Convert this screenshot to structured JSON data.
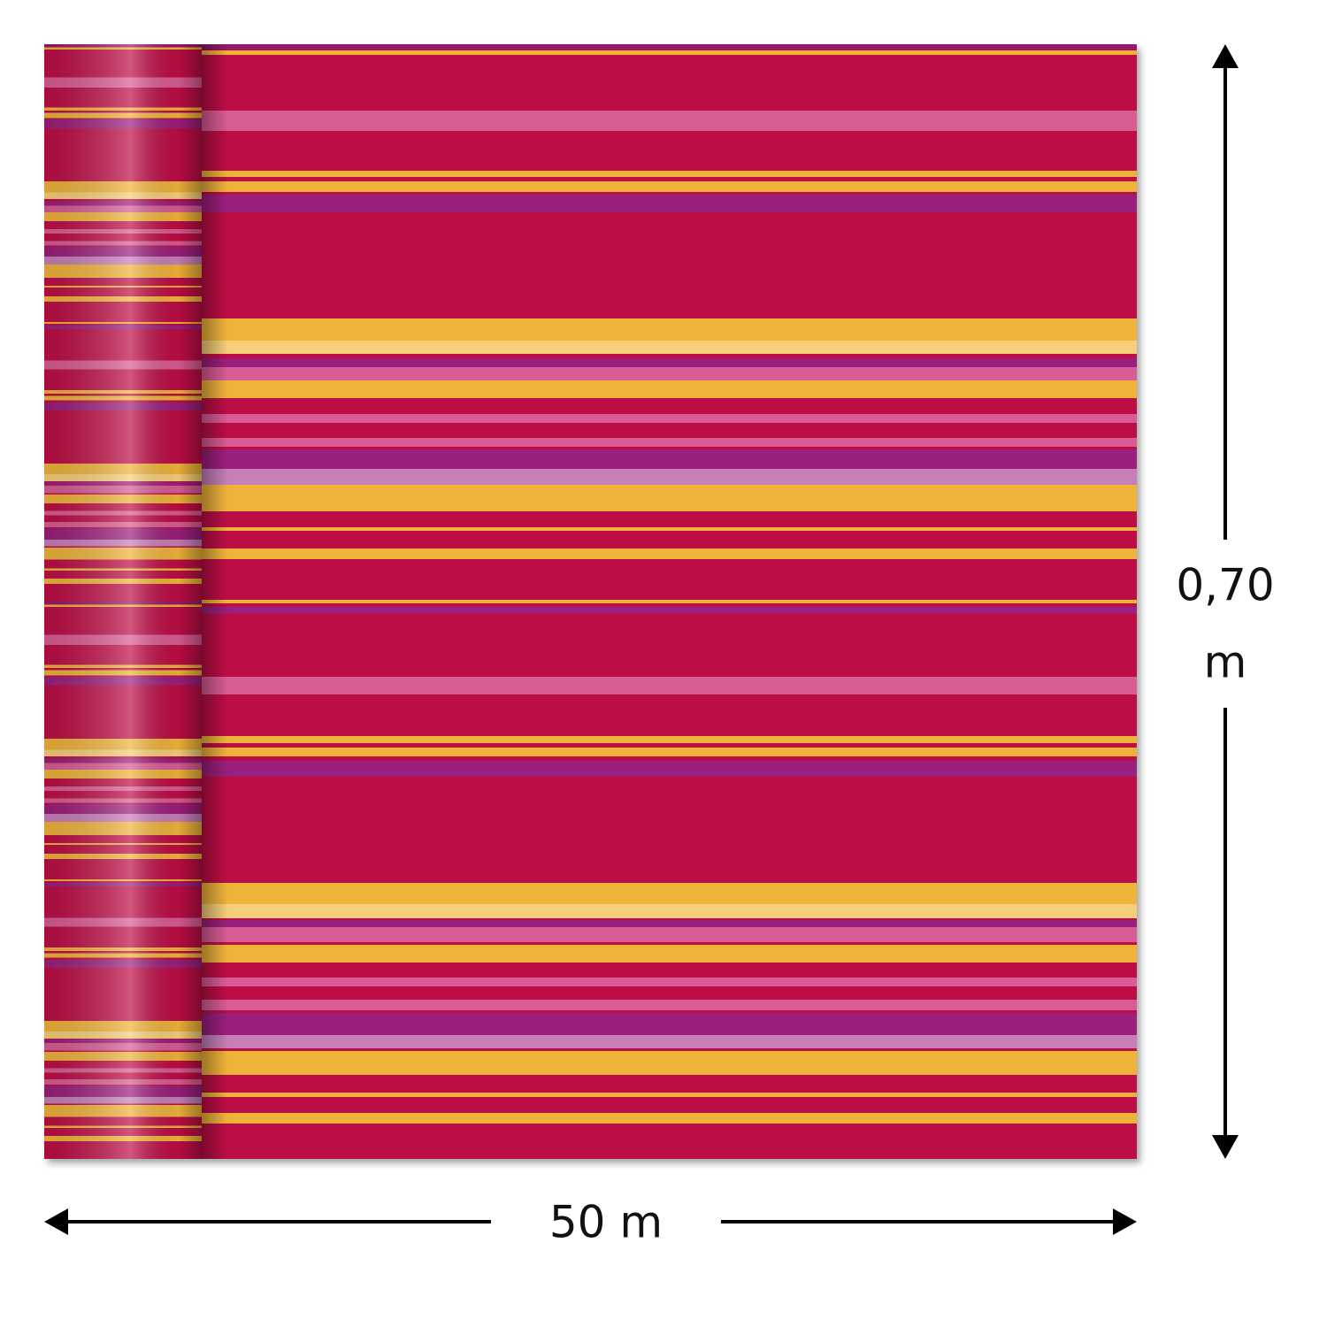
{
  "dimensions": {
    "height": [
      "0,70",
      "m"
    ],
    "width": "50 m"
  }
}
